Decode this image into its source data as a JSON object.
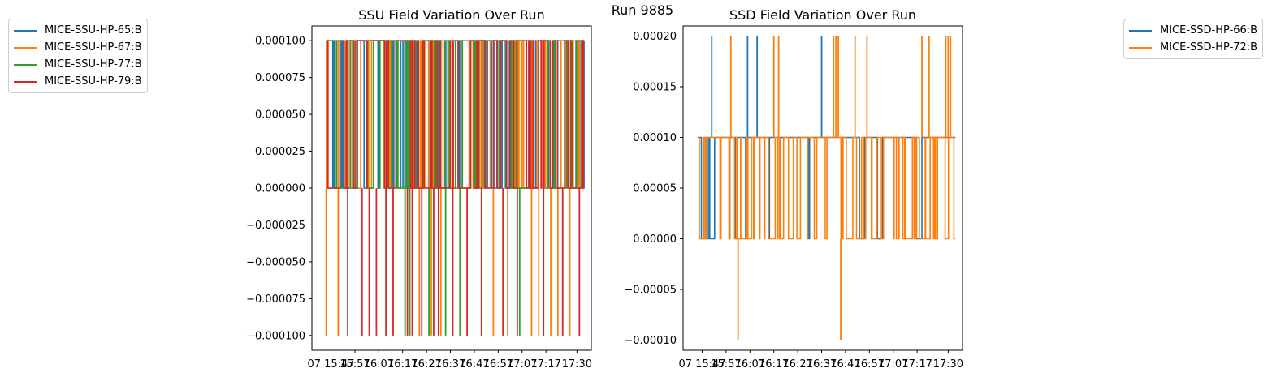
{
  "figure": {
    "suptitle": "Run 9885"
  },
  "colors": {
    "c0": "#1f77b4",
    "c1": "#ff7f0e",
    "c2": "#2ca02c",
    "c3": "#d62728"
  },
  "chart_data": [
    {
      "type": "line",
      "title": "SSU Field Variation Over Run",
      "xlabel": "",
      "ylabel": "",
      "ylim": [
        -0.00011,
        0.00011
      ],
      "yticks": [
        -0.0001,
        -7.5e-05,
        -5e-05,
        -2.5e-05,
        0.0,
        2.5e-05,
        5e-05,
        7.5e-05,
        0.0001
      ],
      "ytick_labels": [
        "−0.000100",
        "−0.000075",
        "−0.000050",
        "−0.000025",
        "0.000000",
        "0.000025",
        "0.000050",
        "0.000075",
        "0.000100"
      ],
      "xlim": [
        "15:39",
        "17:36"
      ],
      "xticks": [
        "15:47",
        "15:57",
        "16:07",
        "16:17",
        "16:27",
        "16:37",
        "16:47",
        "16:57",
        "17:07",
        "17:17",
        "17:30"
      ],
      "xtick_labels": [
        "07 15:47",
        "15:57",
        "16:07",
        "16:17",
        "16:27",
        "16:37",
        "16:47",
        "16:57",
        "17:07",
        "17:17",
        "17:30"
      ],
      "grid": false,
      "legend": {
        "placement": "outside-left"
      },
      "series": [
        {
          "name": "MICE-SSU-HP-65:B",
          "color": "#1f77b4",
          "x_start": "15:45",
          "x_end": "17:33",
          "levels": [
            0.0,
            0.0001
          ],
          "level_fraction": 0.55,
          "n_switches": 150,
          "spikes": []
        },
        {
          "name": "MICE-SSU-HP-67:B",
          "color": "#ff7f0e",
          "x_start": "15:45",
          "x_end": "17:33",
          "levels": [
            0.0,
            0.0001
          ],
          "level_fraction": 0.55,
          "n_switches": 160,
          "spikes": [
            "15:45",
            "15:50",
            "16:18",
            "16:24",
            "16:29",
            "16:33",
            "16:55",
            "17:01",
            "17:11",
            "17:14",
            "17:19",
            "17:22",
            "17:27"
          ],
          "spike_value": -0.0001
        },
        {
          "name": "MICE-SSU-HP-77:B",
          "color": "#2ca02c",
          "x_start": "15:45",
          "x_end": "17:33",
          "levels": [
            0.0,
            0.0001
          ],
          "level_fraction": 0.5,
          "n_switches": 150,
          "spikes": [
            "16:18",
            "16:20",
            "16:28",
            "16:35",
            "16:41",
            "17:06"
          ],
          "spike_value": -0.0001
        },
        {
          "name": "MICE-SSU-HP-79:B",
          "color": "#d62728",
          "x_start": "15:45",
          "x_end": "17:33",
          "levels": [
            0.0,
            0.0001
          ],
          "level_fraction": 0.55,
          "n_switches": 140,
          "spikes": [
            "15:54",
            "16:00",
            "16:03",
            "16:06",
            "16:10",
            "16:13",
            "16:19",
            "16:21",
            "16:25",
            "16:30",
            "16:32",
            "16:38",
            "16:44",
            "16:50",
            "16:59",
            "17:05",
            "17:16",
            "17:24",
            "17:31"
          ],
          "spike_value": -0.0001
        }
      ]
    },
    {
      "type": "line",
      "title": "SSD Field Variation Over Run",
      "xlabel": "",
      "ylabel": "",
      "ylim": [
        -0.00011,
        0.00021
      ],
      "yticks": [
        -0.0001,
        -5e-05,
        0.0,
        5e-05,
        0.0001,
        0.00015,
        0.0002
      ],
      "ytick_labels": [
        "−0.00010",
        "−0.00005",
        "0.00000",
        "0.00005",
        "0.00010",
        "0.00015",
        "0.00020"
      ],
      "xlim": [
        "15:39",
        "17:36"
      ],
      "xticks": [
        "15:47",
        "15:57",
        "16:07",
        "16:17",
        "16:27",
        "16:37",
        "16:47",
        "16:57",
        "17:07",
        "17:17",
        "17:30"
      ],
      "xtick_labels": [
        "07 15:47",
        "15:57",
        "16:07",
        "16:17",
        "16:27",
        "16:37",
        "16:47",
        "16:57",
        "17:07",
        "17:17",
        "17:30"
      ],
      "grid": false,
      "legend": {
        "placement": "outside-right"
      },
      "series": [
        {
          "name": "MICE-SSD-HP-66:B",
          "color": "#1f77b4",
          "x_start": "15:45",
          "x_end": "17:33",
          "levels": [
            0.0,
            0.0001
          ],
          "level_fraction": 0.8,
          "n_switches": 70,
          "spikes_up": [
            "15:51",
            "16:06",
            "16:10",
            "16:37"
          ],
          "spike_up_value": 0.0002,
          "spikes": []
        },
        {
          "name": "MICE-SSD-HP-72:B",
          "color": "#ff7f0e",
          "x_start": "15:45",
          "x_end": "17:33",
          "levels": [
            0.0,
            0.0001
          ],
          "level_fraction": 0.5,
          "n_switches": 170,
          "spikes_up": [
            "15:59",
            "16:17",
            "16:19",
            "16:42",
            "16:43",
            "16:44",
            "16:51",
            "16:56",
            "17:19",
            "17:22",
            "17:29",
            "17:30",
            "17:31"
          ],
          "spike_up_value": 0.0002,
          "spikes": [
            "16:02",
            "16:45"
          ],
          "spike_value": -0.0001
        }
      ]
    }
  ]
}
